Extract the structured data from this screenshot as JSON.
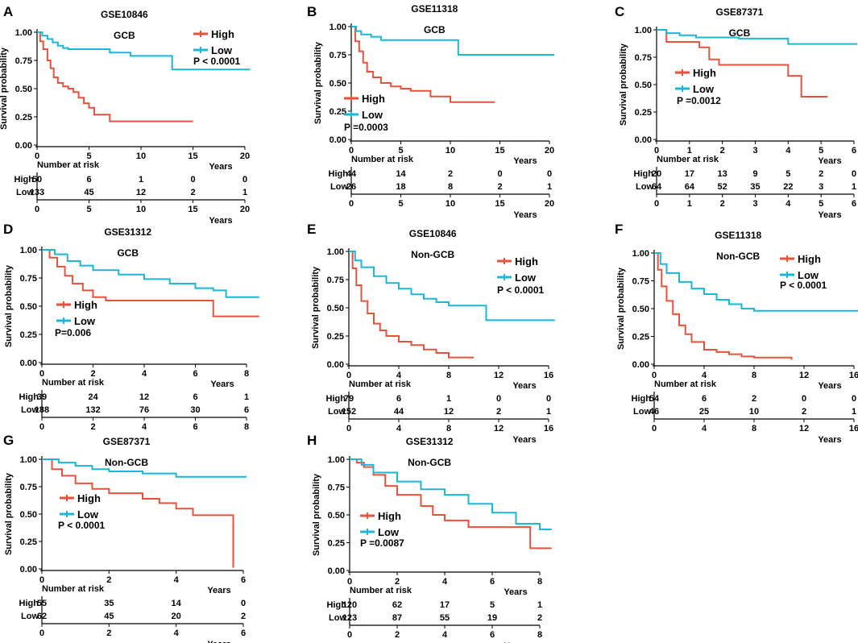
{
  "figure": {
    "colors": {
      "high": "#e8523a",
      "low": "#1ab7d8",
      "axis": "#000000"
    },
    "labels": {
      "ylabel": "Survival probability",
      "xlabel": "Years",
      "risk_title": "Number at risk",
      "row_high": "High",
      "row_low": "Low"
    }
  },
  "chart_data": [
    {
      "type": "line",
      "panel": "A",
      "title": "GSE10846",
      "subtitle": "GCB",
      "xlim": [
        0,
        20
      ],
      "xticks": [
        0,
        5,
        10,
        15,
        20
      ],
      "ylim": [
        0,
        1
      ],
      "yticks": [
        "0.00",
        "0.25",
        "0.50",
        "0.75",
        "1.00"
      ],
      "legend": [
        "High",
        "Low"
      ],
      "pvalue": "P < 0.0001",
      "series": [
        {
          "name": "High",
          "x": [
            0,
            0.3,
            0.6,
            1,
            1.3,
            1.6,
            2,
            2.5,
            3,
            3.5,
            4,
            4.5,
            5,
            5.5,
            7,
            15
          ],
          "y": [
            1,
            0.92,
            0.85,
            0.75,
            0.68,
            0.6,
            0.55,
            0.52,
            0.5,
            0.47,
            0.42,
            0.37,
            0.33,
            0.27,
            0.21,
            0.21
          ]
        },
        {
          "name": "Low",
          "x": [
            0,
            0.5,
            1,
            1.5,
            2,
            2.5,
            3,
            5,
            7,
            9,
            10.5,
            13,
            15,
            20.5
          ],
          "y": [
            1,
            0.97,
            0.94,
            0.91,
            0.88,
            0.86,
            0.85,
            0.85,
            0.82,
            0.79,
            0.79,
            0.67,
            0.67,
            0.67
          ]
        }
      ],
      "risk_x": [
        0,
        5,
        10,
        15,
        20
      ],
      "risk": [
        {
          "name": "High",
          "values": [
            "50",
            "6",
            "1",
            "0",
            "0"
          ]
        },
        {
          "name": "Low",
          "values": [
            "133",
            "45",
            "12",
            "2",
            "1"
          ]
        }
      ]
    },
    {
      "type": "line",
      "panel": "B",
      "title": "GSE11318",
      "subtitle": "GCB",
      "xlim": [
        0,
        20
      ],
      "xticks": [
        0,
        5,
        10,
        15,
        20
      ],
      "ylim": [
        0,
        1
      ],
      "yticks": [
        "0.00",
        "0.25",
        "0.50",
        "0.75",
        "1.00"
      ],
      "legend": [
        "High",
        "Low"
      ],
      "pvalue": "P =0.0003",
      "series": [
        {
          "name": "High",
          "x": [
            0,
            0.4,
            0.8,
            1.2,
            1.6,
            2.2,
            3,
            4,
            5,
            6,
            8,
            10,
            14.5
          ],
          "y": [
            1,
            0.87,
            0.78,
            0.68,
            0.6,
            0.55,
            0.5,
            0.47,
            0.45,
            0.43,
            0.38,
            0.33,
            0.33
          ]
        },
        {
          "name": "Low",
          "x": [
            0,
            0.5,
            1,
            2,
            3,
            5,
            8,
            10.8,
            14,
            20.5
          ],
          "y": [
            1,
            0.96,
            0.93,
            0.91,
            0.88,
            0.88,
            0.88,
            0.75,
            0.75,
            0.75
          ]
        }
      ],
      "risk_x": [
        0,
        5,
        10,
        15,
        20
      ],
      "risk": [
        {
          "name": "High",
          "values": [
            "44",
            "14",
            "2",
            "0",
            "0"
          ]
        },
        {
          "name": "Low",
          "values": [
            "26",
            "18",
            "8",
            "2",
            "1"
          ]
        }
      ]
    },
    {
      "type": "line",
      "panel": "C",
      "title": "GSE87371",
      "subtitle": "GCB",
      "xlim": [
        0,
        6
      ],
      "xticks": [
        0,
        1,
        2,
        3,
        4,
        5,
        6
      ],
      "ylim": [
        0,
        1
      ],
      "yticks": [
        "0.00",
        "0.25",
        "0.50",
        "0.75",
        "1.00"
      ],
      "legend": [
        "High",
        "Low"
      ],
      "pvalue": "P =0.0012",
      "series": [
        {
          "name": "High",
          "x": [
            0,
            0.3,
            1.3,
            1.6,
            1.9,
            3.2,
            4,
            4.4,
            5.2
          ],
          "y": [
            1,
            0.89,
            0.84,
            0.73,
            0.68,
            0.68,
            0.58,
            0.39,
            0.39
          ]
        },
        {
          "name": "Low",
          "x": [
            0,
            0.3,
            0.7,
            1.2,
            2.5,
            3.5,
            4,
            5,
            6.1
          ],
          "y": [
            1,
            0.97,
            0.95,
            0.93,
            0.92,
            0.92,
            0.87,
            0.87,
            0.87
          ]
        }
      ],
      "risk_x": [
        0,
        1,
        2,
        3,
        4,
        5,
        6
      ],
      "risk": [
        {
          "name": "High",
          "values": [
            "20",
            "17",
            "13",
            "9",
            "5",
            "2",
            "0"
          ]
        },
        {
          "name": "Low",
          "values": [
            "64",
            "64",
            "52",
            "35",
            "22",
            "3",
            "1"
          ]
        }
      ]
    },
    {
      "type": "line",
      "panel": "D",
      "title": "GSE31312",
      "subtitle": "GCB",
      "xlim": [
        0,
        8
      ],
      "xticks": [
        0,
        2,
        4,
        6,
        8
      ],
      "ylim": [
        0,
        1
      ],
      "yticks": [
        "0.00",
        "0.25",
        "0.50",
        "0.75",
        "1.00"
      ],
      "legend": [
        "High",
        "Low"
      ],
      "pvalue": "P=0.006",
      "series": [
        {
          "name": "High",
          "x": [
            0,
            0.3,
            0.6,
            0.9,
            1.2,
            1.6,
            2,
            2.5,
            6.7,
            8.5
          ],
          "y": [
            1,
            0.93,
            0.85,
            0.77,
            0.7,
            0.64,
            0.58,
            0.55,
            0.41,
            0.41
          ]
        },
        {
          "name": "Low",
          "x": [
            0,
            0.5,
            1,
            1.5,
            2,
            3,
            4,
            5,
            6,
            6.7,
            7.2,
            8.5
          ],
          "y": [
            1,
            0.96,
            0.9,
            0.86,
            0.82,
            0.78,
            0.74,
            0.7,
            0.66,
            0.64,
            0.58,
            0.58
          ]
        }
      ],
      "risk_x": [
        0,
        2,
        4,
        6,
        8
      ],
      "risk": [
        {
          "name": "High",
          "values": [
            "39",
            "24",
            "12",
            "6",
            "1"
          ]
        },
        {
          "name": "Low",
          "values": [
            "188",
            "132",
            "76",
            "30",
            "6"
          ]
        }
      ]
    },
    {
      "type": "line",
      "panel": "E",
      "title": "GSE10846",
      "subtitle": "Non-GCB",
      "xlim": [
        0,
        16
      ],
      "xticks": [
        0,
        4,
        8,
        12,
        16
      ],
      "ylim": [
        0,
        1
      ],
      "yticks": [
        "0.00",
        "0.25",
        "0.50",
        "0.75",
        "1.00"
      ],
      "legend": [
        "High",
        "Low"
      ],
      "pvalue": "P < 0.0001",
      "series": [
        {
          "name": "High",
          "x": [
            0,
            0.3,
            0.6,
            1,
            1.5,
            2,
            2.5,
            3,
            4,
            5,
            6,
            7,
            8,
            10
          ],
          "y": [
            1,
            0.85,
            0.7,
            0.56,
            0.45,
            0.36,
            0.3,
            0.25,
            0.2,
            0.17,
            0.13,
            0.1,
            0.06,
            0.06
          ]
        },
        {
          "name": "Low",
          "x": [
            0,
            0.5,
            1,
            2,
            3,
            4,
            5,
            6,
            7,
            8,
            11,
            16.5
          ],
          "y": [
            1,
            0.92,
            0.86,
            0.78,
            0.72,
            0.67,
            0.62,
            0.58,
            0.55,
            0.52,
            0.39,
            0.39
          ]
        }
      ],
      "risk_x": [
        0,
        4,
        8,
        12,
        16
      ],
      "risk": [
        {
          "name": "High",
          "values": [
            "79",
            "6",
            "1",
            "0",
            "0"
          ]
        },
        {
          "name": "Low",
          "values": [
            "152",
            "44",
            "12",
            "2",
            "1"
          ]
        }
      ]
    },
    {
      "type": "line",
      "panel": "F",
      "title": "GSE11318",
      "subtitle": "Non-GCB",
      "xlim": [
        0,
        16
      ],
      "xticks": [
        0,
        4,
        8,
        12,
        16
      ],
      "ylim": [
        0,
        1
      ],
      "yticks": [
        "0.00",
        "0.25",
        "0.50",
        "0.75",
        "1.00"
      ],
      "legend": [
        "High",
        "Low"
      ],
      "pvalue": "P < 0.0001",
      "series": [
        {
          "name": "High",
          "x": [
            0,
            0.3,
            0.6,
            1,
            1.5,
            2,
            2.5,
            3,
            4,
            5,
            6,
            7,
            8,
            11
          ],
          "y": [
            1,
            0.85,
            0.7,
            0.57,
            0.45,
            0.35,
            0.27,
            0.2,
            0.13,
            0.11,
            0.09,
            0.07,
            0.06,
            0.04
          ]
        },
        {
          "name": "Low",
          "x": [
            0,
            0.5,
            1,
            2,
            3,
            4,
            5,
            6,
            7,
            8,
            12,
            17
          ],
          "y": [
            1,
            0.9,
            0.82,
            0.74,
            0.68,
            0.63,
            0.58,
            0.54,
            0.5,
            0.48,
            0.48,
            0.48
          ]
        }
      ],
      "risk_x": [
        0,
        4,
        8,
        12,
        16
      ],
      "risk": [
        {
          "name": "High",
          "values": [
            "54",
            "6",
            "2",
            "0",
            "0"
          ]
        },
        {
          "name": "Low",
          "values": [
            "46",
            "25",
            "10",
            "2",
            "1"
          ]
        }
      ]
    },
    {
      "type": "line",
      "panel": "G",
      "title": "GSE87371",
      "subtitle": "Non-GCB",
      "xlim": [
        0,
        6
      ],
      "xticks": [
        0,
        2,
        4,
        6
      ],
      "ylim": [
        0,
        1
      ],
      "yticks": [
        "0.00",
        "0.25",
        "0.50",
        "0.75",
        "1.00"
      ],
      "legend": [
        "High",
        "Low"
      ],
      "pvalue": "P < 0.0001",
      "series": [
        {
          "name": "High",
          "x": [
            0,
            0.3,
            0.6,
            1,
            1.5,
            2,
            3,
            3.5,
            4,
            4.5,
            5.5,
            5.7
          ],
          "y": [
            1,
            0.91,
            0.85,
            0.78,
            0.73,
            0.69,
            0.64,
            0.6,
            0.55,
            0.49,
            0.49,
            0.01
          ]
        },
        {
          "name": "Low",
          "x": [
            0,
            0.5,
            1,
            1.5,
            2,
            3,
            4,
            5,
            6.1
          ],
          "y": [
            1,
            0.97,
            0.94,
            0.91,
            0.89,
            0.87,
            0.84,
            0.84,
            0.84
          ]
        }
      ],
      "risk_x": [
        0,
        2,
        4,
        6
      ],
      "risk": [
        {
          "name": "High",
          "values": [
            "55",
            "35",
            "14",
            "0"
          ]
        },
        {
          "name": "Low",
          "values": [
            "62",
            "45",
            "20",
            "2"
          ]
        }
      ]
    },
    {
      "type": "line",
      "panel": "H",
      "title": "GSE31312",
      "subtitle": "Non-GCB",
      "xlim": [
        0,
        8
      ],
      "xticks": [
        0,
        2,
        4,
        6,
        8
      ],
      "ylim": [
        0,
        1
      ],
      "yticks": [
        "0.00",
        "0.25",
        "0.50",
        "0.75",
        "1.00"
      ],
      "legend": [
        "High",
        "Low"
      ],
      "pvalue": "P =0.0087",
      "series": [
        {
          "name": "High",
          "x": [
            0,
            0.3,
            0.6,
            1,
            1.5,
            2,
            3,
            3.5,
            4,
            5,
            6,
            7,
            7.6,
            8.5
          ],
          "y": [
            1,
            0.97,
            0.93,
            0.86,
            0.76,
            0.68,
            0.58,
            0.5,
            0.45,
            0.39,
            0.39,
            0.39,
            0.2,
            0.2
          ]
        },
        {
          "name": "Low",
          "x": [
            0,
            0.5,
            1,
            2,
            3,
            4,
            5,
            6,
            7,
            8,
            8.5
          ],
          "y": [
            1,
            0.95,
            0.88,
            0.8,
            0.73,
            0.68,
            0.6,
            0.52,
            0.42,
            0.37,
            0.37
          ]
        }
      ],
      "risk_x": [
        0,
        2,
        4,
        6,
        8
      ],
      "risk": [
        {
          "name": "High",
          "values": [
            "120",
            "62",
            "17",
            "5",
            "1"
          ]
        },
        {
          "name": "Low",
          "values": [
            "123",
            "87",
            "55",
            "19",
            "2"
          ]
        }
      ]
    }
  ]
}
